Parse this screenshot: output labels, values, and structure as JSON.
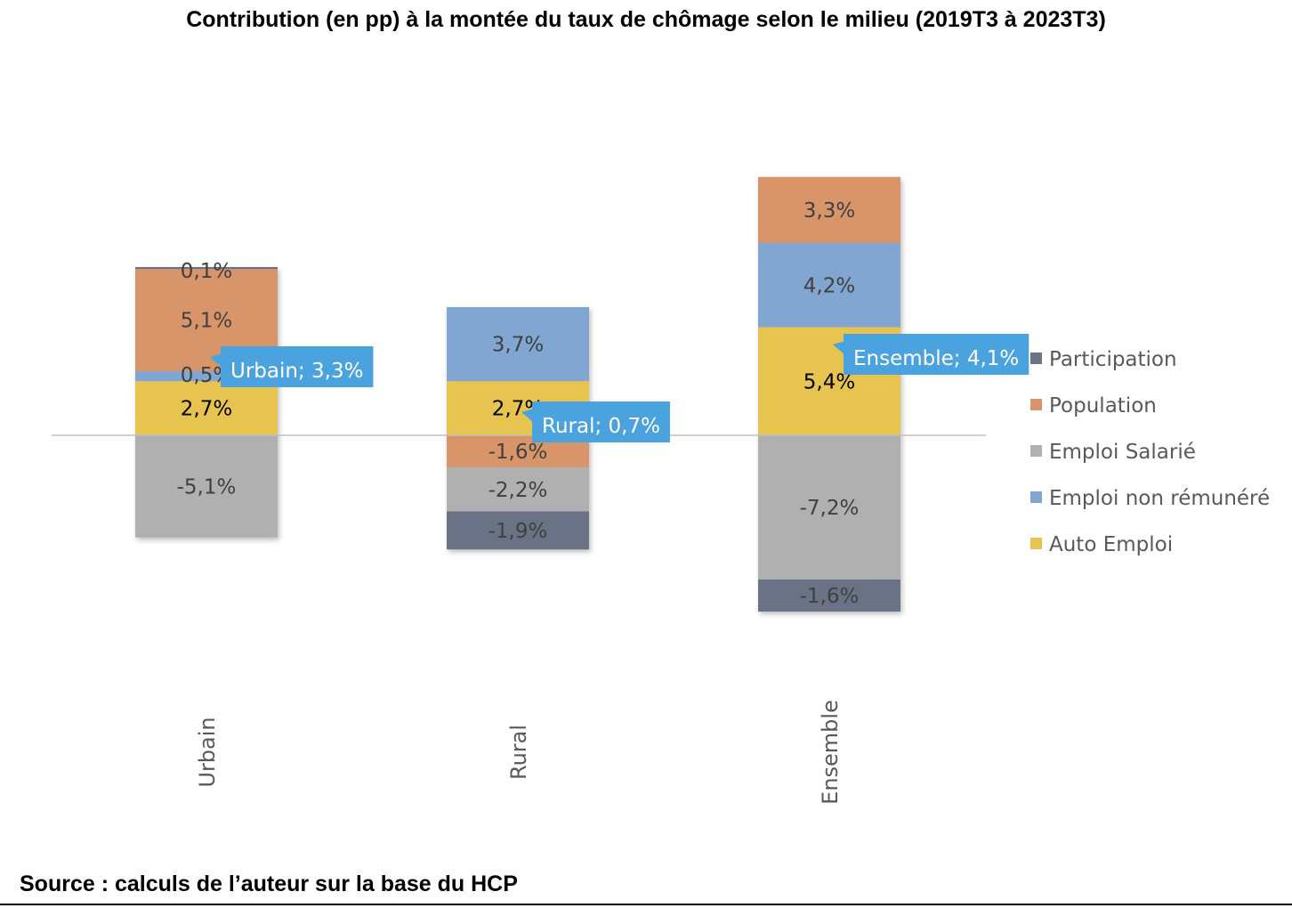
{
  "chart_data": {
    "type": "stacked-bar",
    "title": "Contribution (en pp) à la montée du taux de chômage selon le milieu (2019T3 à 2023T3)",
    "source": "Source : calculs de l’auteur sur la base du HCP",
    "categories": [
      "Urbain",
      "Rural",
      "Ensemble"
    ],
    "series": [
      {
        "name": "Auto Emploi",
        "color": "#e7c350",
        "label_color": "#000000",
        "values": [
          2.7,
          2.7,
          5.4
        ],
        "labels": [
          "2,7%",
          "2,7%",
          "5,4%"
        ]
      },
      {
        "name": "Emploi non rémunéré",
        "color": "#81a6d1",
        "label_color": "#404040",
        "values": [
          0.5,
          3.7,
          4.2
        ],
        "labels": [
          "0,5%",
          "3,7%",
          "4,2%"
        ]
      },
      {
        "name": "Population",
        "color": "#d9956a",
        "label_color": "#404040",
        "values": [
          5.1,
          -1.6,
          3.3
        ],
        "labels": [
          "5,1%",
          "-1,6%",
          "3,3%"
        ]
      },
      {
        "name": "Emploi Salarié",
        "color": "#b0b0b0",
        "label_color": "#404040",
        "values": [
          -5.1,
          -2.2,
          -7.2
        ],
        "labels": [
          "-5,1%",
          "-2,2%",
          "-7,2%"
        ]
      },
      {
        "name": "Participation",
        "color": "#6a7385",
        "label_color": "#404040",
        "values": [
          0.1,
          -1.9,
          -1.6
        ],
        "labels": [
          "0,1%",
          "-1,9%",
          "-1,6%"
        ]
      }
    ],
    "totals": [
      {
        "category": "Urbain",
        "value": 3.3,
        "label": "Urbain; 3,3%"
      },
      {
        "category": "Rural",
        "value": 0.7,
        "label": "Rural; 0,7%"
      },
      {
        "category": "Ensemble",
        "value": 4.1,
        "label": "Ensemble; 4,1%"
      }
    ],
    "legend": [
      "Participation",
      "Population",
      "Emploi Salarié",
      "Emploi non rémunéré",
      "Auto Emploi"
    ],
    "legend_position": "right",
    "callout_color": "#4aa3df",
    "ylim": [
      -8.8,
      12.9
    ],
    "grid": false
  }
}
